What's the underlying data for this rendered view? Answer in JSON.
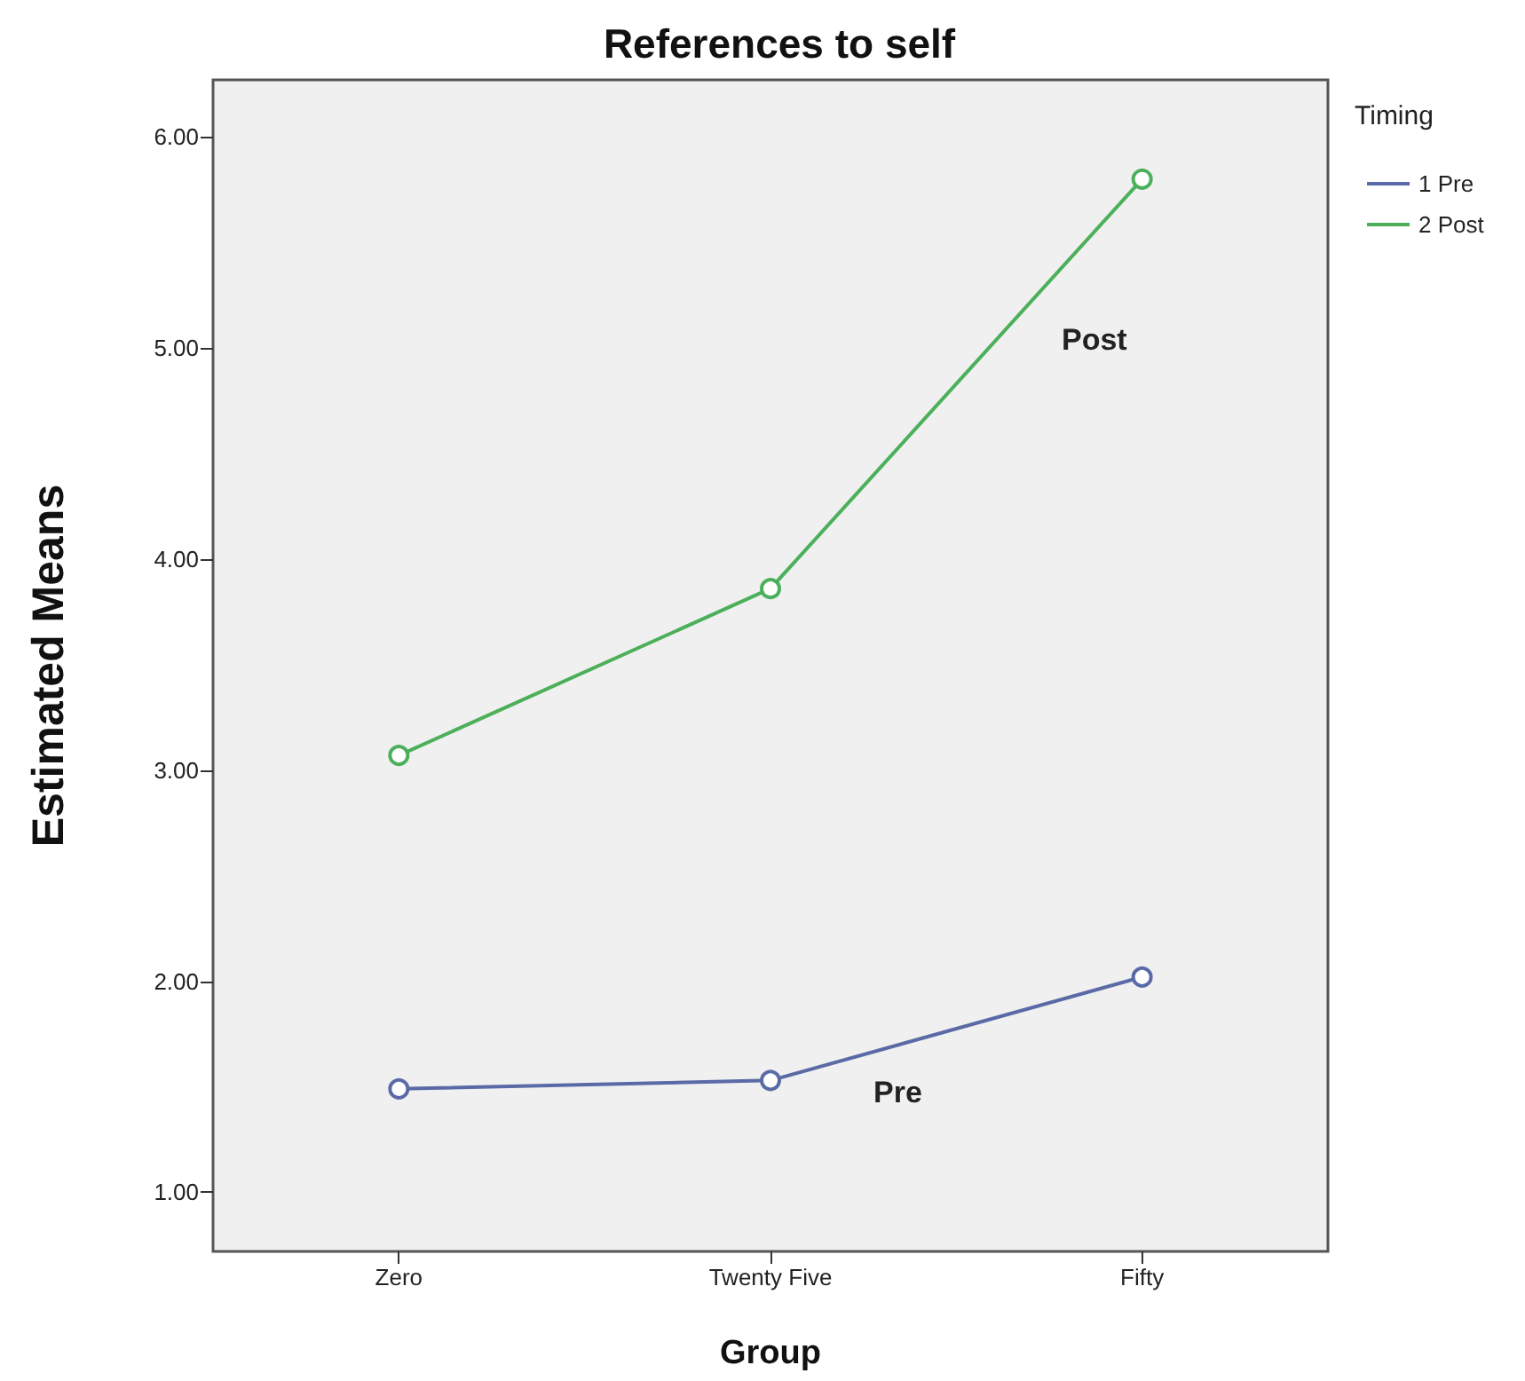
{
  "chart_data": {
    "type": "line",
    "title": "References to self",
    "xlabel": "Group",
    "ylabel": "Estimated Means",
    "legend_title": "Timing",
    "categories": [
      "Zero",
      "Twenty Five",
      "Fifty"
    ],
    "series": [
      {
        "name": "1 Pre",
        "color": "#5a6aa6",
        "values": [
          1.49,
          1.53,
          2.02
        ]
      },
      {
        "name": "2 Post",
        "color": "#4cb05a",
        "values": [
          3.07,
          3.86,
          5.8
        ]
      }
    ],
    "ylim": [
      0.72,
      6.27
    ],
    "yticks": [
      {
        "value": 1,
        "label": "1.00"
      },
      {
        "value": 2,
        "label": "2.00"
      },
      {
        "value": 3,
        "label": "3.00"
      },
      {
        "value": 4,
        "label": "4.00"
      },
      {
        "value": 5,
        "label": "5.00"
      },
      {
        "value": 6,
        "label": "6.00"
      }
    ],
    "annotations": [
      "Post",
      "Pre"
    ],
    "marker": "circle",
    "line_style": "solid",
    "grid": false,
    "legend": "top right"
  }
}
